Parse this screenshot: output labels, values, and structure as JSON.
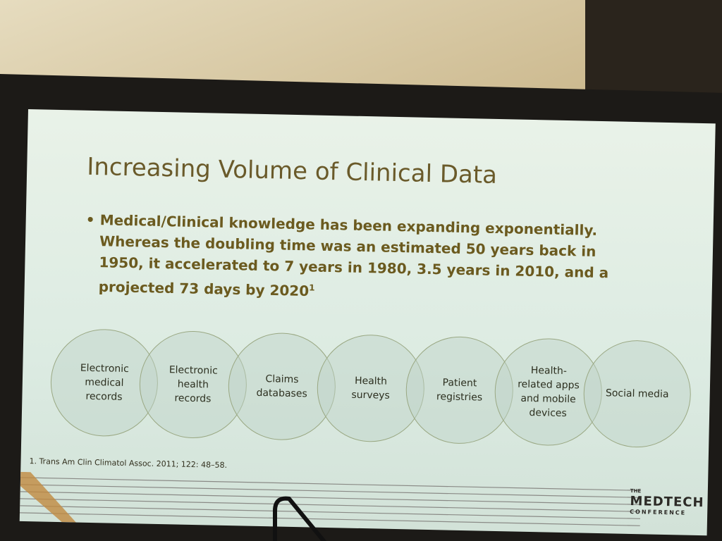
{
  "slide": {
    "title": "Increasing Volume of Clinical Data",
    "bullet": {
      "text": "Medical/Clinical knowledge has been expanding exponentially. Whereas the doubling time was an estimated 50 years back in 1950, it accelerated to 7 years in 1980, 3.5 years in 2010, and a projected 73 days by 2020",
      "superscript": "1"
    },
    "circles": [
      "Electronic medical records",
      "Electronic health records",
      "Claims databases",
      "Health surveys",
      "Patient registries",
      "Health-related apps and mobile devices",
      "Social media"
    ],
    "footnote": "1. Trans Am Clin Climatol Assoc. 2011; 122: 48–58.",
    "logo": {
      "top": "THE",
      "main": "MEDTECH",
      "bottom": "CONFERENCE"
    }
  }
}
